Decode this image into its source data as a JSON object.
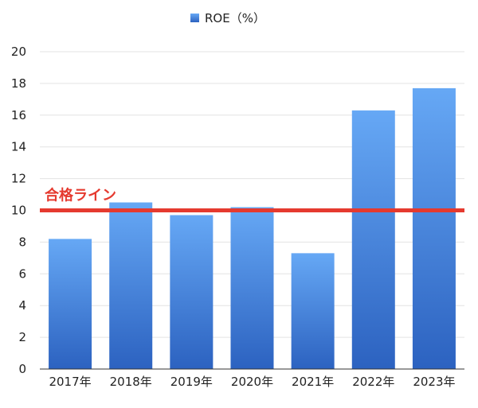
{
  "chart_data": {
    "type": "bar",
    "legend": "ROE（%）",
    "categories": [
      "2017年",
      "2018年",
      "2019年",
      "2020年",
      "2021年",
      "2022年",
      "2023年"
    ],
    "values": [
      8.2,
      10.5,
      9.7,
      10.2,
      7.3,
      16.3,
      17.7
    ],
    "ylim": [
      0,
      20
    ],
    "yticks": [
      "0",
      "2",
      "4",
      "6",
      "8",
      "10",
      "12",
      "14",
      "16",
      "18",
      "20"
    ],
    "grid": true,
    "legend_position": "top-center",
    "reference_line": {
      "value": 10,
      "label": "合格ライン",
      "color": "#e53a2f"
    },
    "bar_color_top": "#66a8f5",
    "bar_color_bottom": "#2c62c0"
  }
}
